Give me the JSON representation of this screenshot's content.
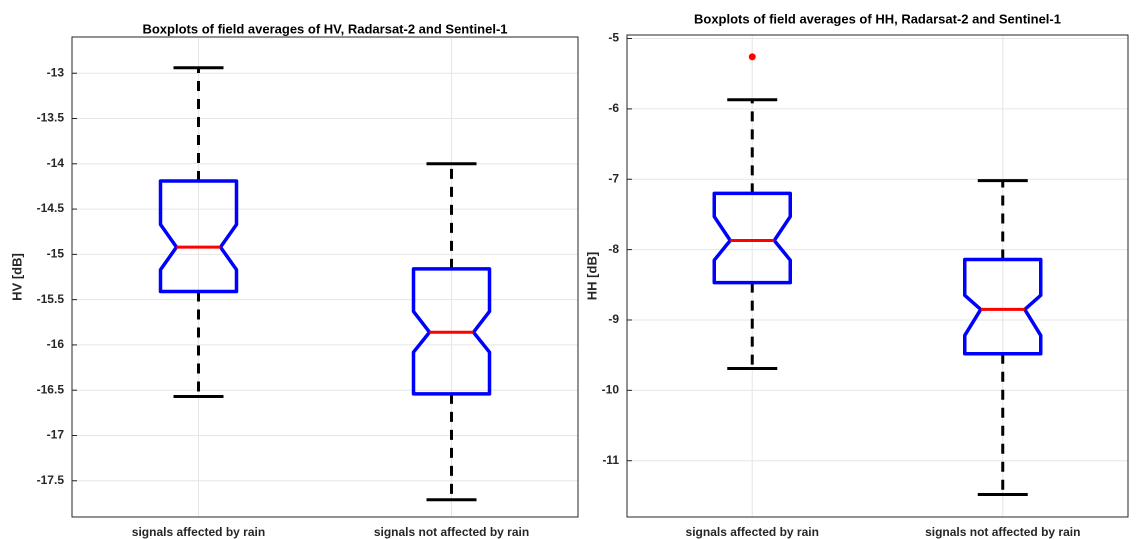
{
  "chart_data": [
    {
      "type": "box",
      "title": "Boxplots of field averages of HV, Radarsat-2 and Sentinel-1",
      "ylabel": "HV [dB]",
      "categories": [
        "signals affected by rain",
        "signals not affected by rain"
      ],
      "boxes": [
        {
          "whisker_low": -16.57,
          "q1": -15.41,
          "notch_low": -15.17,
          "median": -14.92,
          "notch_high": -14.67,
          "q3": -14.19,
          "whisker_high": -12.94
        },
        {
          "whisker_low": -17.71,
          "q1": -16.54,
          "notch_low": -16.08,
          "median": -15.86,
          "notch_high": -15.63,
          "q3": -15.16,
          "whisker_high": -14.0
        }
      ],
      "ylim": [
        -17.9,
        -12.6
      ],
      "yticks": [
        -17.5,
        -17,
        -16.5,
        -16,
        -15.5,
        -15,
        -14.5,
        -14,
        -13.5,
        -13
      ],
      "grid": true,
      "box_color": "#0000ff",
      "median_color": "#ff0000",
      "whisker_color": "#000000",
      "outlier_color": "#ff0000"
    },
    {
      "type": "box",
      "title": "Boxplots of field averages of HH, Radarsat-2 and Sentinel-1",
      "ylabel": "HH [dB]",
      "categories": [
        "signals affected by rain",
        "signals not affected by rain"
      ],
      "boxes": [
        {
          "whisker_low": -9.69,
          "q1": -8.47,
          "notch_low": -8.15,
          "median": -7.87,
          "notch_high": -7.53,
          "q3": -7.2,
          "whisker_high": -5.87,
          "outliers": [
            -5.26
          ]
        },
        {
          "whisker_low": -11.48,
          "q1": -9.48,
          "notch_low": -9.22,
          "median": -8.85,
          "notch_high": -8.65,
          "q3": -8.14,
          "whisker_high": -7.02
        }
      ],
      "ylim": [
        -11.8,
        -4.95
      ],
      "yticks": [
        -11,
        -10,
        -9,
        -8,
        -7,
        -6,
        -5
      ],
      "grid": true,
      "box_color": "#0000ff",
      "median_color": "#ff0000",
      "whisker_color": "#000000",
      "outlier_color": "#ff0000"
    }
  ]
}
